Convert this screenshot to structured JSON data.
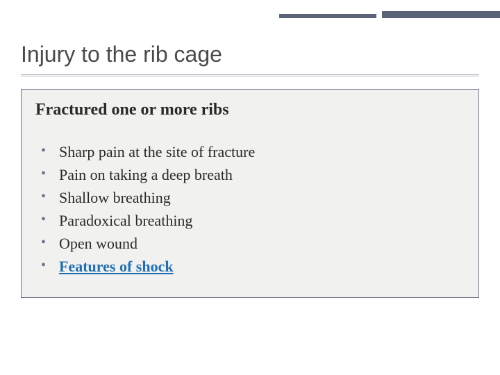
{
  "slide": {
    "title": "Injury to the rib cage",
    "subtitle": "Fractured one or more ribs",
    "bullets": [
      {
        "text": "Sharp pain at the site of fracture",
        "link": false
      },
      {
        "text": "Pain on taking a deep breath",
        "link": false
      },
      {
        "text": "Shallow breathing",
        "link": false
      },
      {
        "text": "Paradoxical breathing",
        "link": false
      },
      {
        "text": "Open wound",
        "link": false
      },
      {
        "text": "Features of shock",
        "link": true
      }
    ]
  },
  "styling": {
    "background_color": "#ffffff",
    "box_background": "#f1f1ef",
    "box_border_color": "#6b7289",
    "accent_color": "#5a6378",
    "title_color": "#4a4a4a",
    "title_fontsize_pt": 24,
    "subtitle_fontsize_pt": 18,
    "body_fontsize_pt": 17,
    "bullet_color": "#6b7289",
    "link_color": "#1f6fb3",
    "title_font": "Verdana",
    "body_font": "Georgia"
  }
}
